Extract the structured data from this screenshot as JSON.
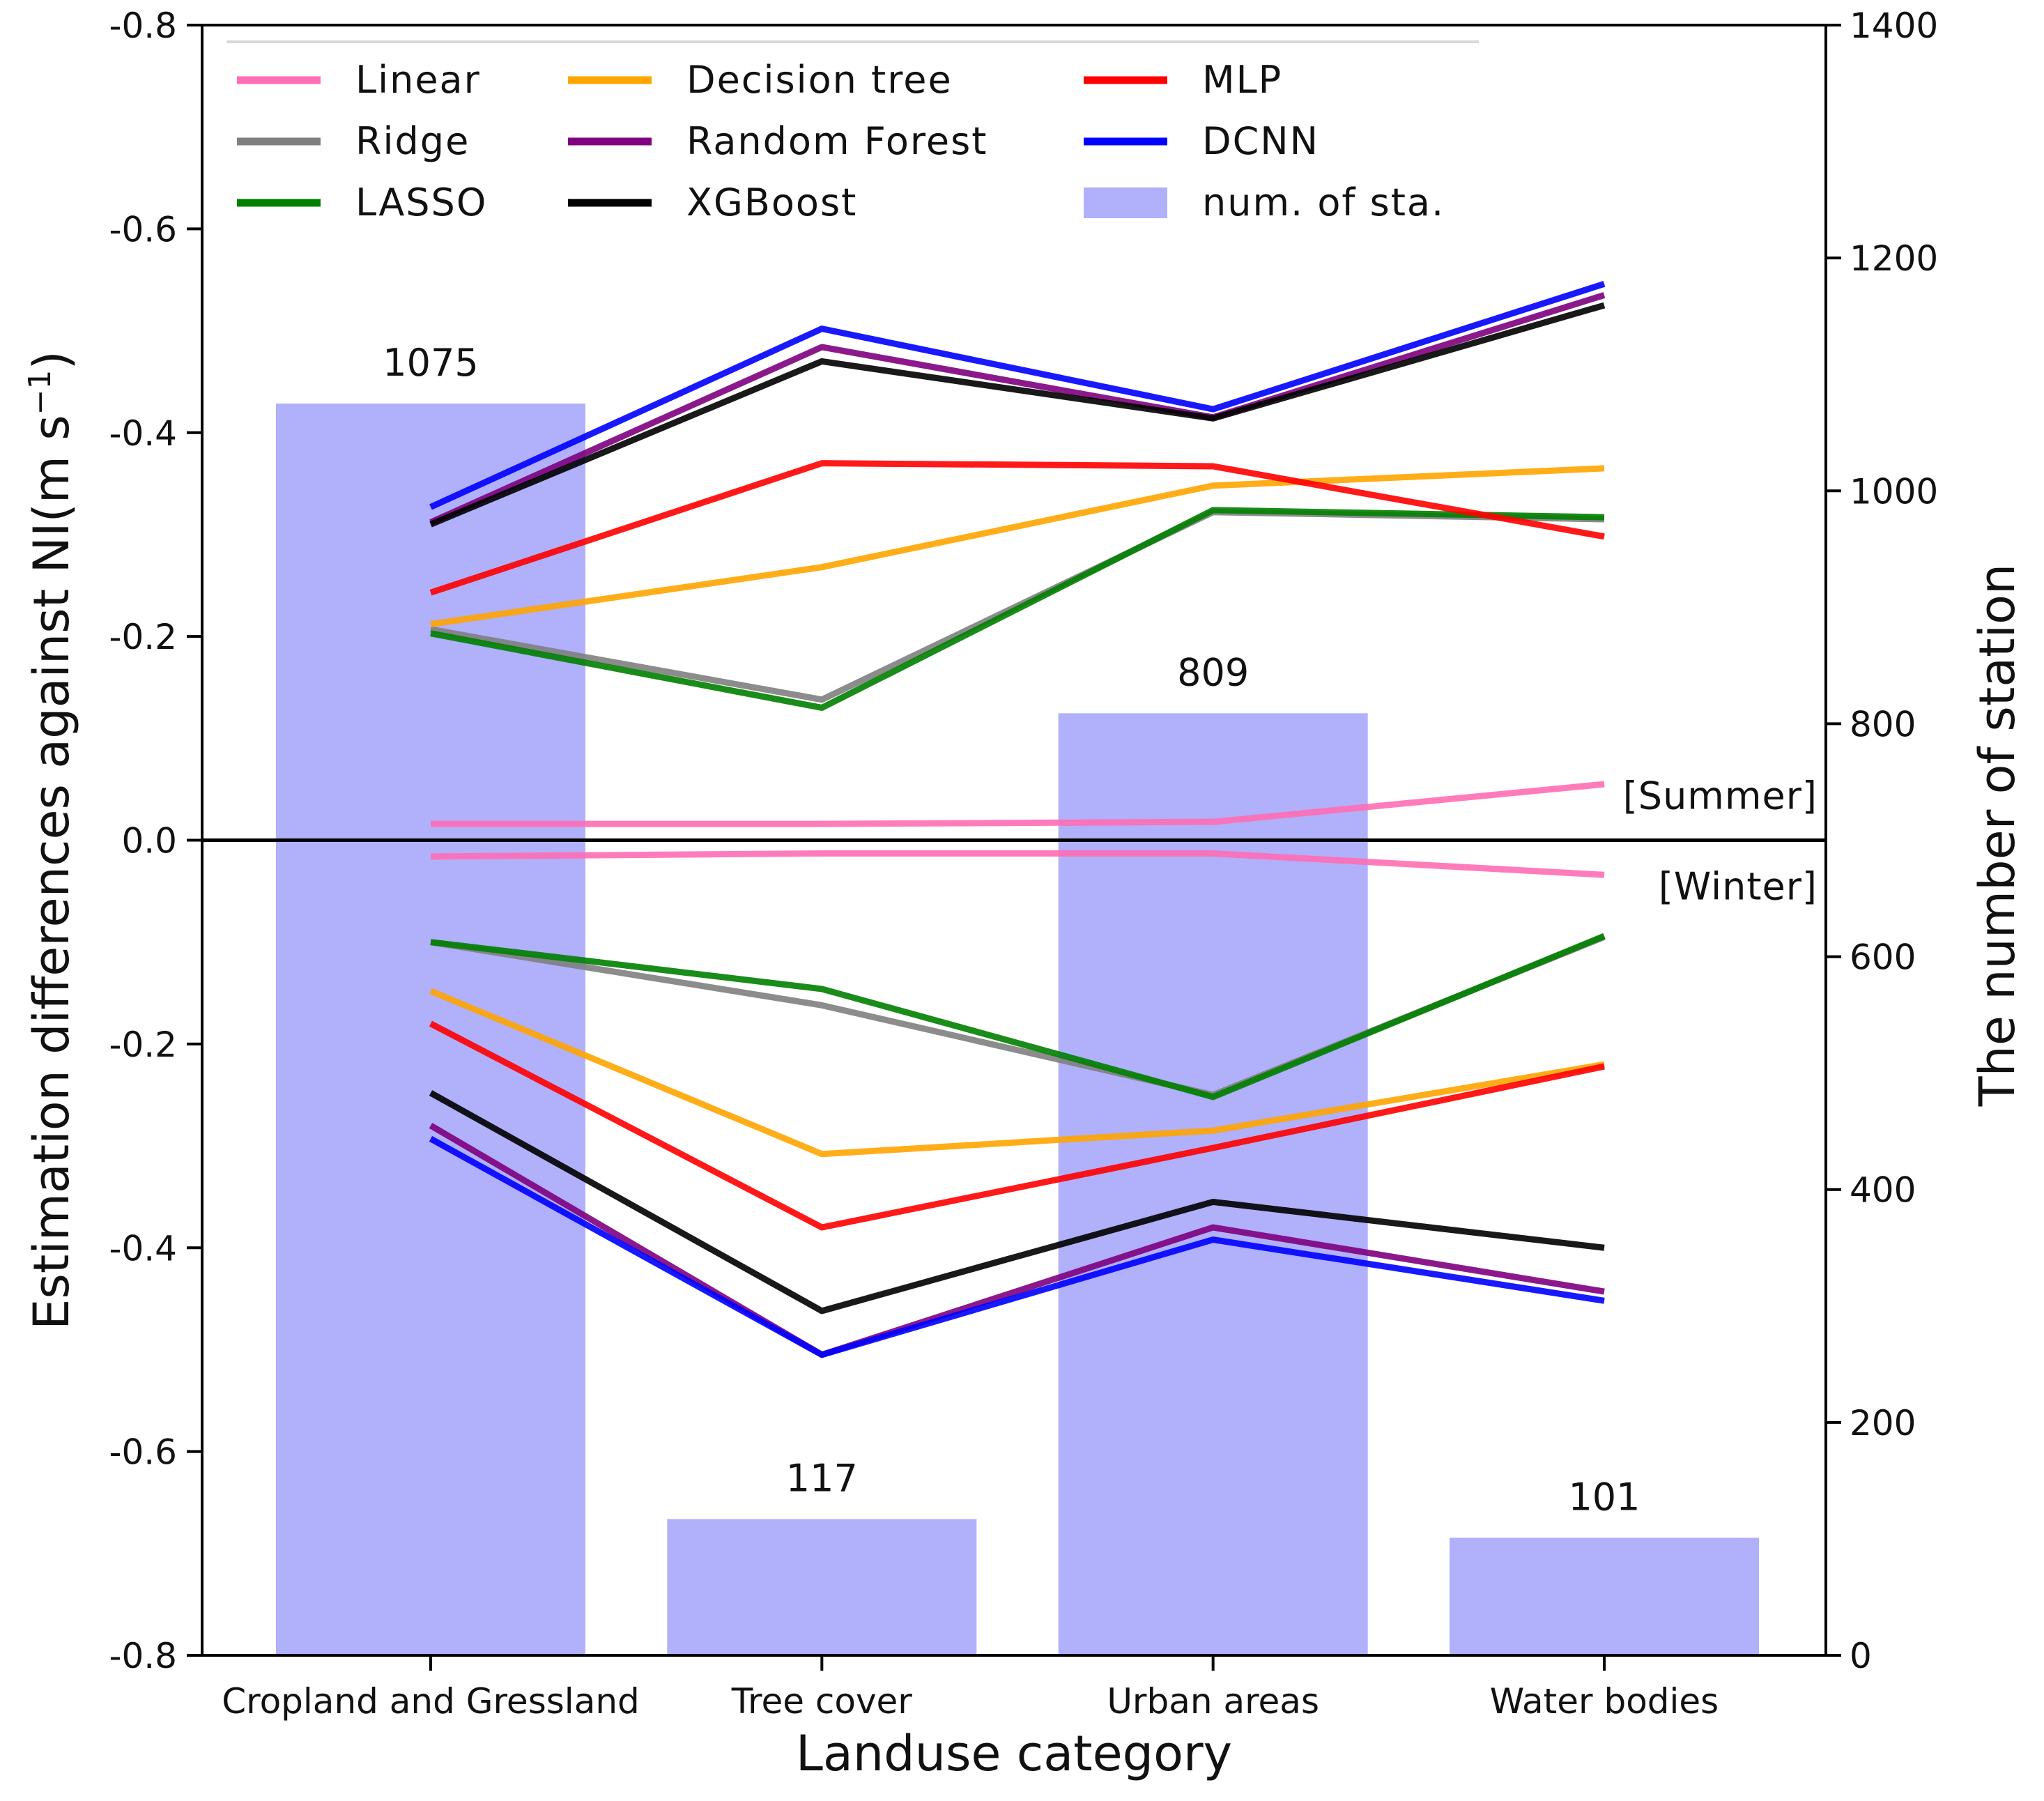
{
  "chart_data": {
    "type": "line",
    "xlabel": "Landuse category",
    "ylabel": "Estimation differences against NI(m s",
    "ylabel_exponent": "−1",
    "ylabel_close": ")",
    "y2label": "The number of station",
    "categories": [
      "Cropland and Gressland",
      "Tree cover",
      "Urban areas",
      "Water bodies"
    ],
    "y_left": {
      "range": [
        -0.8,
        0.8
      ],
      "ticks": [
        -0.8,
        -0.6,
        -0.4,
        -0.2,
        0.0,
        -0.2,
        -0.4,
        -0.6,
        -0.8
      ],
      "tick_labels": [
        "-0.8",
        "-0.6",
        "-0.4",
        "-0.2",
        "0.0",
        "-0.2",
        "-0.4",
        "-0.6",
        "-0.8"
      ],
      "note": "upper half = Summer (plotted upward), lower half = Winter (plotted downward); axis labels printed negative on both halves"
    },
    "y_right": {
      "range": [
        0,
        1400
      ],
      "ticks": [
        0,
        200,
        400,
        600,
        800,
        1000,
        1200,
        1400
      ],
      "tick_labels": [
        "0",
        "200",
        "400",
        "600",
        "800",
        "1000",
        "1200",
        "1400"
      ]
    },
    "bars": {
      "name": "num. of sta.",
      "color": "#b0b0fb",
      "values": [
        1075,
        117,
        809,
        101
      ],
      "labels": [
        "1075",
        "117",
        "809",
        "101"
      ]
    },
    "season_labels": {
      "summer": "[Summer]",
      "winter": "[Winter]"
    },
    "series": [
      {
        "name": "Linear",
        "color": "#ff6eb4",
        "summer": [
          0.016,
          0.016,
          0.018,
          0.055
        ],
        "winter": [
          0.016,
          0.013,
          0.013,
          0.034
        ]
      },
      {
        "name": "Ridge",
        "color": "#808080",
        "summer": [
          0.207,
          0.138,
          0.322,
          0.315
        ],
        "winter": [
          0.1,
          0.162,
          0.25,
          0.095
        ]
      },
      {
        "name": "LASSO",
        "color": "#008000",
        "summer": [
          0.203,
          0.13,
          0.324,
          0.317
        ],
        "winter": [
          0.1,
          0.146,
          0.252,
          0.094
        ]
      },
      {
        "name": "Decision tree",
        "color": "#ffa500",
        "summer": [
          0.212,
          0.268,
          0.348,
          0.365
        ],
        "winter": [
          0.148,
          0.308,
          0.285,
          0.22
        ]
      },
      {
        "name": "Random Forest",
        "color": "#800080",
        "summer": [
          0.312,
          0.484,
          0.415,
          0.535
        ],
        "winter": [
          0.28,
          0.505,
          0.38,
          0.443
        ]
      },
      {
        "name": "XGBoost",
        "color": "#000000",
        "summer": [
          0.31,
          0.47,
          0.414,
          0.525
        ],
        "winter": [
          0.248,
          0.462,
          0.355,
          0.4
        ]
      },
      {
        "name": "MLP",
        "color": "#ff0000",
        "summer": [
          0.243,
          0.37,
          0.367,
          0.298
        ],
        "winter": [
          0.18,
          0.38,
          0.302,
          0.222
        ]
      },
      {
        "name": "DCNN",
        "color": "#0000ff",
        "summer": [
          0.327,
          0.502,
          0.423,
          0.546
        ],
        "winter": [
          0.293,
          0.505,
          0.392,
          0.452
        ]
      }
    ],
    "legend": {
      "placement": "top",
      "columns": [
        [
          "Linear",
          "Ridge",
          "LASSO"
        ],
        [
          "Decision tree",
          "Random Forest",
          "XGBoost"
        ],
        [
          "MLP",
          "DCNN",
          "num. of sta."
        ]
      ]
    },
    "grid": false
  }
}
